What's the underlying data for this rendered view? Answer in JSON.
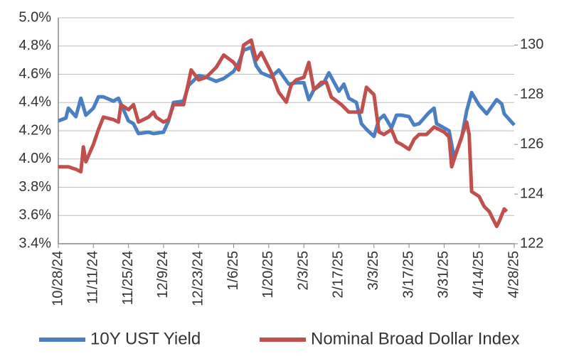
{
  "chart_data": {
    "type": "line",
    "xlim": [
      "10/28/24",
      "4/28/25"
    ],
    "xticks": [
      "10/28/24",
      "11/11/24",
      "11/25/24",
      "12/9/24",
      "12/23/24",
      "1/6/25",
      "1/20/25",
      "2/3/25",
      "2/17/25",
      "3/3/25",
      "3/17/25",
      "3/31/25",
      "4/14/25",
      "4/28/25"
    ],
    "ylim": [
      3.4,
      5.0
    ],
    "yticks": [
      {
        "value": 3.4,
        "label": "3.4%"
      },
      {
        "value": 3.6,
        "label": "3.6%"
      },
      {
        "value": 3.8,
        "label": "3.8%"
      },
      {
        "value": 4.0,
        "label": "4.0%"
      },
      {
        "value": 4.2,
        "label": "4.2%"
      },
      {
        "value": 4.4,
        "label": "4.4%"
      },
      {
        "value": 4.6,
        "label": "4.6%"
      },
      {
        "value": 4.8,
        "label": "4.8%"
      },
      {
        "value": 5.0,
        "label": "5.0%"
      }
    ],
    "y2lim": [
      122,
      131.1
    ],
    "y2ticks": [
      122,
      124,
      126,
      128,
      130
    ],
    "grid": true,
    "legend": "bottom",
    "series": [
      {
        "name": "10Y UST Yield",
        "color": "#4a7fc1",
        "axis": "y",
        "x": [
          "10/28/24",
          "10/31/24",
          "11/1/24",
          "11/4/24",
          "11/6/24",
          "11/8/24",
          "11/11/24",
          "11/13/24",
          "11/15/24",
          "11/19/24",
          "11/21/24",
          "11/25/24",
          "11/27/24",
          "11/29/24",
          "12/3/24",
          "12/5/24",
          "12/9/24",
          "12/11/24",
          "12/13/24",
          "12/17/24",
          "12/19/24",
          "12/23/24",
          "12/26/24",
          "12/30/24",
          "1/2/25",
          "1/6/25",
          "1/8/25",
          "1/10/25",
          "1/13/25",
          "1/15/25",
          "1/17/25",
          "1/21/25",
          "1/24/25",
          "1/28/25",
          "1/31/25",
          "2/3/25",
          "2/5/25",
          "2/7/25",
          "2/11/25",
          "2/13/25",
          "2/17/25",
          "2/19/25",
          "2/21/25",
          "2/24/25",
          "2/26/25",
          "2/28/25",
          "3/3/25",
          "3/5/25",
          "3/7/25",
          "3/10/25",
          "3/12/25",
          "3/14/25",
          "3/17/25",
          "3/19/25",
          "3/21/25",
          "3/25/25",
          "3/27/25",
          "3/28/25",
          "3/31/25",
          "4/2/25",
          "4/4/25",
          "4/7/25",
          "4/9/25",
          "4/11/25",
          "4/14/25",
          "4/17/25",
          "4/21/25",
          "4/23/25",
          "4/24/25",
          "4/28/25"
        ],
        "values": [
          4.27,
          4.29,
          4.36,
          4.3,
          4.43,
          4.31,
          4.36,
          4.44,
          4.44,
          4.41,
          4.43,
          4.27,
          4.25,
          4.18,
          4.19,
          4.18,
          4.19,
          4.27,
          4.4,
          4.41,
          4.52,
          4.59,
          4.58,
          4.55,
          4.57,
          4.62,
          4.68,
          4.77,
          4.79,
          4.66,
          4.61,
          4.58,
          4.63,
          4.53,
          4.54,
          4.54,
          4.42,
          4.49,
          4.54,
          4.61,
          4.48,
          4.53,
          4.43,
          4.4,
          4.25,
          4.21,
          4.16,
          4.28,
          4.31,
          4.22,
          4.31,
          4.31,
          4.3,
          4.24,
          4.25,
          4.33,
          4.36,
          4.25,
          4.22,
          4.2,
          4.01,
          4.15,
          4.34,
          4.47,
          4.38,
          4.32,
          4.42,
          4.39,
          4.32,
          4.24
        ]
      },
      {
        "name": "Nominal Broad Dollar Index",
        "color": "#c0504d",
        "axis": "y2",
        "x": [
          "10/28/24",
          "11/1/24",
          "11/4/24",
          "11/6/24",
          "11/7/24",
          "11/8/24",
          "11/11/24",
          "11/13/24",
          "11/15/24",
          "11/19/24",
          "11/21/24",
          "11/22/24",
          "11/25/24",
          "11/27/24",
          "11/29/24",
          "12/3/24",
          "12/5/24",
          "12/6/24",
          "12/9/24",
          "12/11/24",
          "12/13/24",
          "12/17/24",
          "12/19/24",
          "12/20/24",
          "12/23/24",
          "12/26/24",
          "12/30/24",
          "1/2/25",
          "1/6/25",
          "1/8/25",
          "1/10/25",
          "1/13/25",
          "1/15/25",
          "1/17/25",
          "1/21/25",
          "1/24/25",
          "1/27/25",
          "1/29/25",
          "1/31/25",
          "2/3/25",
          "2/5/25",
          "2/7/25",
          "2/10/25",
          "2/12/25",
          "2/14/25",
          "2/18/25",
          "2/21/25",
          "2/24/25",
          "2/26/25",
          "2/28/25",
          "3/3/25",
          "3/5/25",
          "3/7/25",
          "3/10/25",
          "3/12/25",
          "3/14/25",
          "3/17/25",
          "3/19/25",
          "3/21/25",
          "3/24/25",
          "3/27/25",
          "3/31/25",
          "4/2/25",
          "4/3/25",
          "4/7/25",
          "4/9/25",
          "4/10/25",
          "4/11/25",
          "4/14/25",
          "4/16/25",
          "4/18/25",
          "4/21/25",
          "4/22/25",
          "4/24/25",
          "4/25/25"
        ],
        "values": [
          125.1,
          125.1,
          125.0,
          124.9,
          125.9,
          125.3,
          126.0,
          126.6,
          127.1,
          127.0,
          126.9,
          127.6,
          127.4,
          127.6,
          126.9,
          127.1,
          127.3,
          127.1,
          126.9,
          127.0,
          127.6,
          127.6,
          128.5,
          129.0,
          128.6,
          128.7,
          129.1,
          129.6,
          129.3,
          129.0,
          130.0,
          130.2,
          129.4,
          129.7,
          128.9,
          128.1,
          127.7,
          128.4,
          128.6,
          128.7,
          129.3,
          128.2,
          128.5,
          128.5,
          127.9,
          127.6,
          127.3,
          127.3,
          127.3,
          128.3,
          128.0,
          126.5,
          126.4,
          126.6,
          126.1,
          126.0,
          125.8,
          126.2,
          126.4,
          126.4,
          126.7,
          126.5,
          126.3,
          125.1,
          126.3,
          126.9,
          126.4,
          124.1,
          123.9,
          123.5,
          123.3,
          122.7,
          122.9,
          123.4,
          123.3
        ]
      }
    ]
  }
}
